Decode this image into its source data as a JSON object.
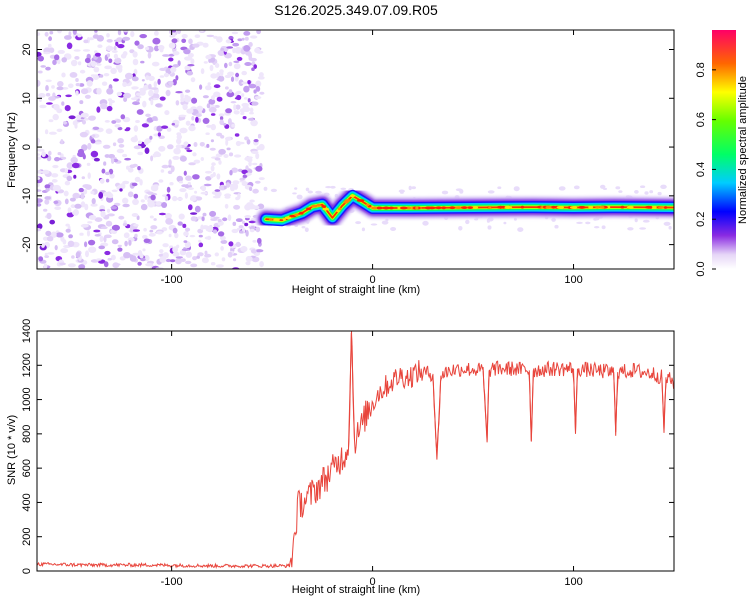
{
  "title": "S126.2025.349.07.09.R05",
  "chart_data": [
    {
      "type": "heatmap",
      "xlabel": "Height of straight line (km)",
      "ylabel": "Frequency (Hz)",
      "xlim": [
        -167,
        150
      ],
      "ylim": [
        -25,
        24
      ],
      "x_ticks": [
        -100,
        0,
        100
      ],
      "y_ticks": [
        -20,
        -10,
        0,
        10,
        20
      ],
      "noise_region_x": [
        -167,
        -55
      ],
      "ridge": {
        "x": [
          -53,
          -45,
          -40,
          -35,
          -30,
          -25,
          -20,
          -15,
          -10,
          -5,
          0,
          20,
          50,
          80,
          100,
          120,
          150
        ],
        "y": [
          -14.8,
          -15,
          -14.2,
          -13.5,
          -12.2,
          -11.8,
          -14.5,
          -12,
          -10,
          -11.2,
          -12.5,
          -12.5,
          -12.4,
          -12.3,
          -12.4,
          -12.3,
          -12.4
        ]
      },
      "colorbar": {
        "label": "Normalized spectral amplitude",
        "ticks": [
          "0.0",
          "0.2",
          "0.4",
          "0.6",
          "0.8"
        ],
        "range": [
          0,
          0.96
        ]
      }
    },
    {
      "type": "line",
      "xlabel": "Height of straight line (km)",
      "ylabel": "SNR (10 * v/v)",
      "xlim": [
        -167,
        150
      ],
      "ylim": [
        0,
        1400
      ],
      "x_ticks": [
        -100,
        0,
        100
      ],
      "y_ticks": [
        0,
        200,
        400,
        600,
        800,
        1000,
        1200,
        1400
      ],
      "color": "#e8453c",
      "series": [
        {
          "x": [
            -167,
            -140,
            -110,
            -80,
            -60,
            -45,
            -41,
            -40,
            -37,
            -32,
            -28,
            -22,
            -18,
            -14,
            -12,
            -10.5,
            -9,
            -7,
            -3,
            0,
            3,
            7,
            10,
            14,
            18,
            22,
            25,
            30,
            32,
            34,
            38,
            45,
            55,
            57,
            58,
            60,
            70,
            78,
            79,
            80,
            90,
            100,
            101,
            102,
            110,
            120,
            121,
            122,
            130,
            140,
            144,
            145,
            146,
            150
          ],
          "y": [
            40,
            35,
            35,
            30,
            30,
            30,
            30,
            100,
            380,
            430,
            480,
            560,
            620,
            680,
            720,
            1400,
            760,
            800,
            920,
            980,
            1040,
            1080,
            1110,
            1140,
            1130,
            1160,
            1160,
            1150,
            650,
            1140,
            1170,
            1180,
            1170,
            750,
            1170,
            1180,
            1180,
            1170,
            760,
            1170,
            1180,
            1180,
            800,
            1180,
            1170,
            1160,
            810,
            1160,
            1170,
            1150,
            1130,
            820,
            1130,
            1100
          ]
        }
      ]
    }
  ]
}
